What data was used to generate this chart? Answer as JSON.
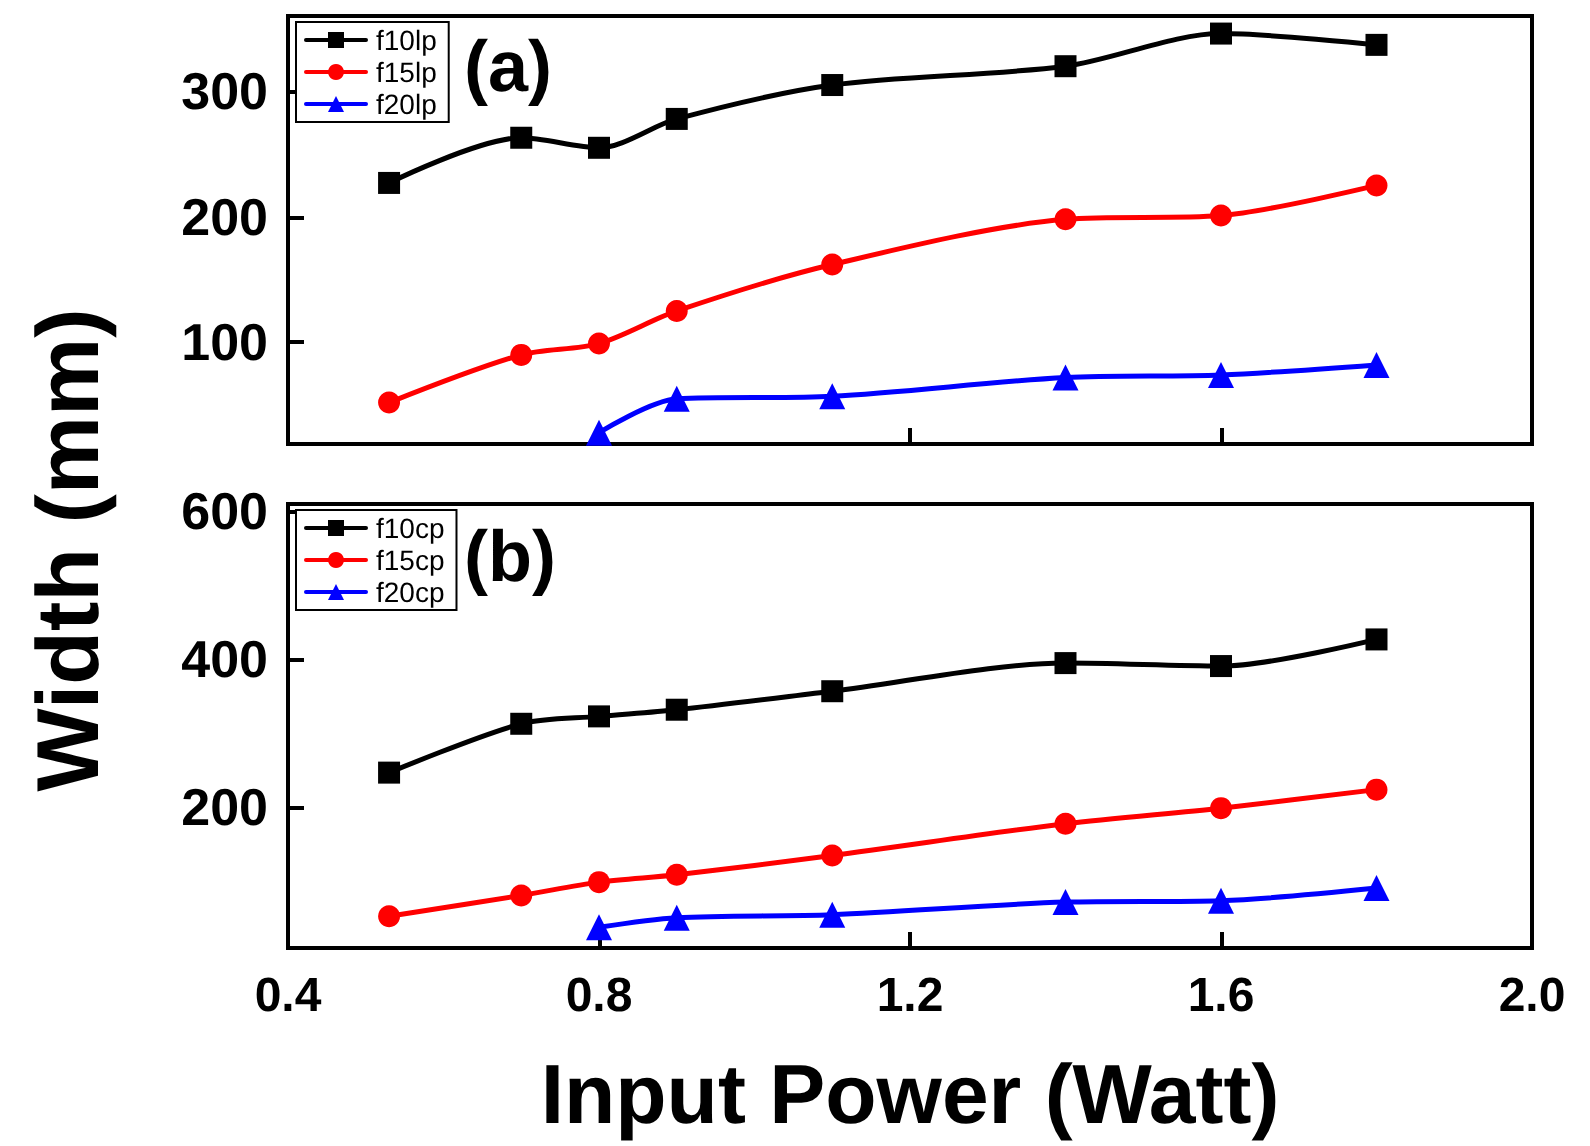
{
  "chart_data": [
    {
      "type": "line",
      "ylabel": "Width (mm)",
      "annotations": [
        "(a)"
      ],
      "xlim": [
        0.4,
        2.0
      ],
      "xticks": [
        0.4,
        0.8,
        1.2,
        1.6,
        2.0
      ],
      "ylim": [
        19,
        360
      ],
      "yticks": [
        100,
        200,
        300
      ],
      "tick_labels": "y",
      "legend": "top left",
      "grid": false,
      "series": [
        {
          "name": "f10lp",
          "color": "#000000",
          "marker": "square",
          "x": [
            0.53,
            0.7,
            0.8,
            0.9,
            1.1,
            1.4,
            1.6,
            1.8
          ],
          "values": [
            227,
            263,
            255,
            278,
            305,
            320,
            346,
            337
          ]
        },
        {
          "name": "f15lp",
          "color": "#ff0000",
          "marker": "circle",
          "x": [
            0.53,
            0.7,
            0.8,
            0.9,
            1.1,
            1.4,
            1.6,
            1.8
          ],
          "values": [
            52,
            90,
            99,
            125,
            162,
            198,
            201,
            225
          ]
        },
        {
          "name": "f20lp",
          "color": "#0000ff",
          "marker": "triangle",
          "x": [
            0.8,
            0.9,
            1.1,
            1.4,
            1.6,
            1.8
          ],
          "values": [
            28,
            55,
            57,
            72,
            74,
            82
          ]
        }
      ]
    },
    {
      "type": "line",
      "xlabel": "Input Power (Watt)",
      "annotations": [
        "(b)"
      ],
      "xlim": [
        0.4,
        2.0
      ],
      "xticks": [
        {
          "value": 0.4,
          "label": "0.4"
        },
        {
          "value": 0.8,
          "label": "0.8"
        },
        {
          "value": 1.2,
          "label": "1.2"
        },
        {
          "value": 1.6,
          "label": "1.6"
        },
        {
          "value": 2.0,
          "label": "2.0"
        }
      ],
      "ylim": [
        10,
        610
      ],
      "yticks": [
        200,
        400,
        600
      ],
      "legend": "top left",
      "grid": false,
      "series": [
        {
          "name": "f10cp",
          "color": "#000000",
          "marker": "square",
          "x": [
            0.53,
            0.7,
            0.8,
            0.9,
            1.1,
            1.4,
            1.6,
            1.8
          ],
          "values": [
            247,
            313,
            323,
            332,
            357,
            395,
            391,
            427
          ]
        },
        {
          "name": "f15cp",
          "color": "#ff0000",
          "marker": "circle",
          "x": [
            0.53,
            0.7,
            0.8,
            0.9,
            1.1,
            1.4,
            1.6,
            1.8
          ],
          "values": [
            53,
            81,
            99,
            109,
            135,
            178,
            199,
            224
          ]
        },
        {
          "name": "f20cp",
          "color": "#0000ff",
          "marker": "triangle",
          "x": [
            0.8,
            0.9,
            1.1,
            1.4,
            1.6,
            1.8
          ],
          "values": [
            38,
            51,
            55,
            72,
            74,
            91
          ]
        }
      ]
    }
  ]
}
